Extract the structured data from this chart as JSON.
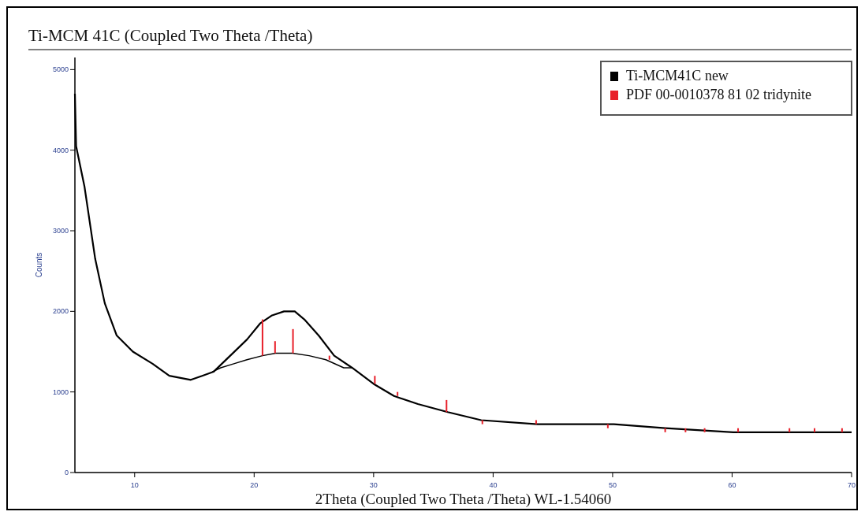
{
  "chart_data": {
    "type": "line",
    "title": "Ti-MCM 41C (Coupled Two Theta /Theta)",
    "xlabel": "2Theta (Coupled Two Theta /Theta) WL-1.54060",
    "ylabel": "Counts",
    "xlim": [
      5,
      70
    ],
    "ylim": [
      0,
      5150
    ],
    "xticks": [
      10,
      20,
      30,
      40,
      50,
      60,
      70
    ],
    "yticks": [
      0,
      1000,
      2000,
      3000,
      4000,
      5000
    ],
    "grid": false,
    "legend": "top right",
    "series": [
      {
        "name": "Ti-MCM41C new",
        "color": "#000000",
        "x": [
          5,
          5.1,
          5.8,
          6.7,
          7.5,
          8.5,
          9.85,
          11.5,
          12.9,
          14.7,
          16.6,
          18,
          19.4,
          20.5,
          21.5,
          22.5,
          23.4,
          24.2,
          25.4,
          26.7,
          28.2,
          30,
          31.7,
          33.7,
          36.2,
          39,
          43.7,
          50.1,
          54.4,
          60.1,
          65,
          70
        ],
        "values": [
          4700,
          4050,
          3550,
          2650,
          2100,
          1700,
          1500,
          1350,
          1200,
          1150,
          1250,
          1450,
          1650,
          1850,
          1950,
          2000,
          2000,
          1900,
          1700,
          1450,
          1300,
          1100,
          950,
          850,
          750,
          650,
          600,
          600,
          550,
          500,
          500,
          500
        ]
      },
      {
        "color": "#000000",
        "x": [
          16.5,
          17.2,
          18.3,
          19.4,
          20.7,
          21.8,
          23.2,
          24.6,
          26,
          27.5,
          28.2
        ],
        "values": [
          1250,
          1300,
          1350,
          1400,
          1450,
          1480,
          1480,
          1450,
          1400,
          1300,
          1300
        ]
      },
      {
        "name": "PDF 00-0010378 81 02 tridynite",
        "color": "#e8202a",
        "type": "bar",
        "x": [
          20.7,
          21.75,
          23.25,
          26.3,
          30.1,
          32,
          36.1,
          39.1,
          43.6,
          49.6,
          54.4,
          56.1,
          57.7,
          60.5,
          64.8,
          66.9,
          69.2
        ],
        "base": [
          1450,
          1480,
          1480,
          1400,
          1100,
          950,
          750,
          600,
          600,
          550,
          500,
          500,
          500,
          500,
          500,
          500,
          500
        ],
        "values": [
          450,
          150,
          300,
          50,
          100,
          50,
          150,
          50,
          50,
          50,
          50,
          50,
          50,
          50,
          50,
          50,
          50
        ]
      }
    ]
  }
}
